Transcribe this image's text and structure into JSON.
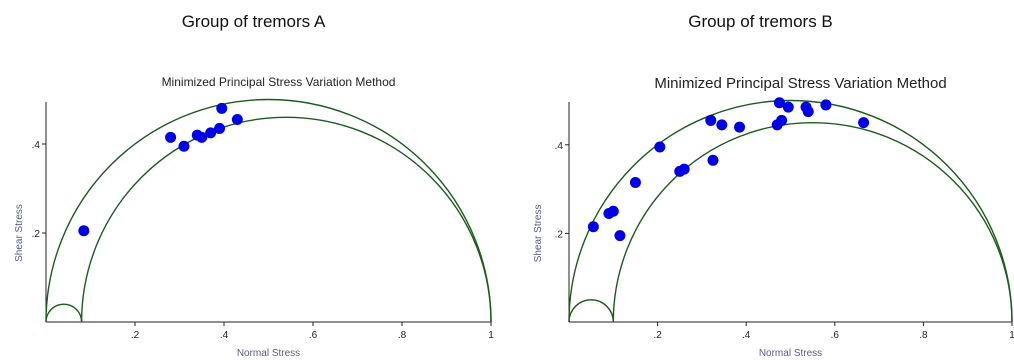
{
  "chart_data": [
    {
      "type": "scatter",
      "group_title": "Group of tremors A",
      "title": "Minimized Principal Stress Variation Method",
      "xlabel": "Normal Stress",
      "ylabel": "Shear Stress",
      "xlim": [
        0,
        1
      ],
      "ylim": [
        0,
        0.5
      ],
      "x_ticks": [
        ".2",
        ".4",
        ".6",
        ".8",
        "1"
      ],
      "y_ticks": [
        ".2",
        ".4"
      ],
      "mohr_circles": [
        {
          "center": 0.5,
          "radius": 0.5
        },
        {
          "center": 0.54,
          "radius": 0.46
        },
        {
          "center": 0.04,
          "radius": 0.04
        }
      ],
      "points": [
        {
          "x": 0.085,
          "y": 0.205
        },
        {
          "x": 0.28,
          "y": 0.415
        },
        {
          "x": 0.31,
          "y": 0.395
        },
        {
          "x": 0.34,
          "y": 0.42
        },
        {
          "x": 0.35,
          "y": 0.415
        },
        {
          "x": 0.37,
          "y": 0.425
        },
        {
          "x": 0.39,
          "y": 0.435
        },
        {
          "x": 0.395,
          "y": 0.48
        },
        {
          "x": 0.43,
          "y": 0.455
        }
      ],
      "point_color": "#0000e6",
      "curve_color": "#1a5c1a"
    },
    {
      "type": "scatter",
      "group_title": "Group of tremors B",
      "title": "Minimized Principal Stress Variation Method",
      "xlabel": "Normal Stress",
      "ylabel": "Shear Stress",
      "xlim": [
        0,
        1
      ],
      "ylim": [
        0,
        0.5
      ],
      "x_ticks": [
        ".2",
        ".4",
        ".6",
        ".8",
        "1"
      ],
      "y_ticks": [
        ".2",
        ".4"
      ],
      "mohr_circles": [
        {
          "center": 0.5,
          "radius": 0.5
        },
        {
          "center": 0.55,
          "radius": 0.45
        },
        {
          "center": 0.05,
          "radius": 0.05
        }
      ],
      "points": [
        {
          "x": 0.055,
          "y": 0.215
        },
        {
          "x": 0.09,
          "y": 0.245
        },
        {
          "x": 0.1,
          "y": 0.25
        },
        {
          "x": 0.115,
          "y": 0.195
        },
        {
          "x": 0.15,
          "y": 0.315
        },
        {
          "x": 0.205,
          "y": 0.395
        },
        {
          "x": 0.25,
          "y": 0.34
        },
        {
          "x": 0.26,
          "y": 0.345
        },
        {
          "x": 0.32,
          "y": 0.455
        },
        {
          "x": 0.325,
          "y": 0.365
        },
        {
          "x": 0.345,
          "y": 0.445
        },
        {
          "x": 0.385,
          "y": 0.44
        },
        {
          "x": 0.47,
          "y": 0.445
        },
        {
          "x": 0.475,
          "y": 0.495
        },
        {
          "x": 0.48,
          "y": 0.455
        },
        {
          "x": 0.495,
          "y": 0.485
        },
        {
          "x": 0.535,
          "y": 0.485
        },
        {
          "x": 0.54,
          "y": 0.475
        },
        {
          "x": 0.58,
          "y": 0.49
        },
        {
          "x": 0.665,
          "y": 0.45
        }
      ],
      "point_color": "#0000e6",
      "curve_color": "#1a5c1a"
    }
  ]
}
